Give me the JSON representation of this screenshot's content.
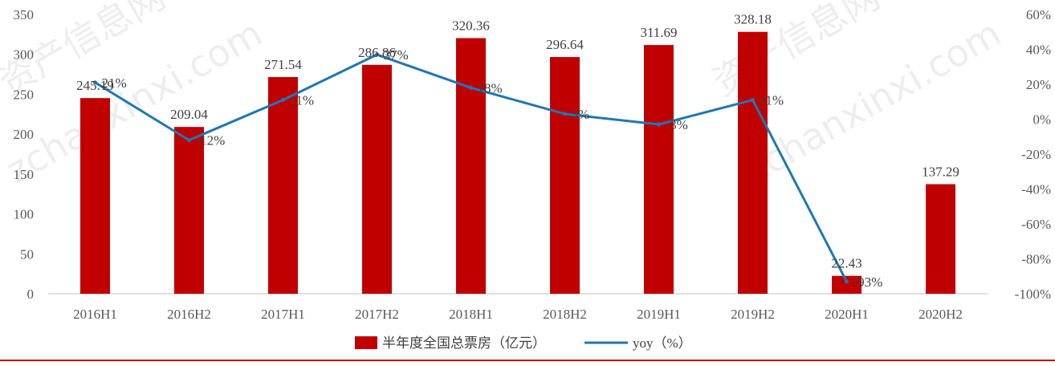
{
  "chart_data": {
    "type": "bar",
    "categories": [
      "2016H1",
      "2016H2",
      "2017H1",
      "2017H2",
      "2018H1",
      "2018H2",
      "2019H1",
      "2019H2",
      "2020H1",
      "2020H2"
    ],
    "series": [
      {
        "name": "半年度全国总票房（亿元）",
        "kind": "bar",
        "axis": "left",
        "color": "#C00000",
        "values": [
          245.19,
          209.04,
          271.54,
          286.86,
          320.36,
          296.64,
          311.69,
          328.18,
          22.43,
          137.29
        ],
        "labels": [
          "245.19",
          "209.04",
          "271.54",
          "286.86",
          "320.36",
          "296.64",
          "311.69",
          "328.18",
          "22.43",
          "137.29"
        ]
      },
      {
        "name": "yoy（%）",
        "kind": "line",
        "axis": "right",
        "color": "#1F77B4",
        "values": [
          21,
          -12,
          11,
          37,
          18,
          3,
          -3,
          11,
          -93,
          null
        ],
        "labels": [
          "21%",
          "-12%",
          "11%",
          "37%",
          "18%",
          "3%",
          "-3%",
          "11%",
          "-93%",
          ""
        ]
      }
    ],
    "ylim_left": [
      0,
      350
    ],
    "yticks_left": [
      "0",
      "50",
      "100",
      "150",
      "200",
      "250",
      "300",
      "350"
    ],
    "ylim_right": [
      -100,
      60
    ],
    "yticks_right": [
      "-100%",
      "-80%",
      "-60%",
      "-40%",
      "-20%",
      "0%",
      "20%",
      "40%",
      "60%"
    ],
    "grid": false,
    "legend_position": "bottom",
    "watermark_text": [
      "资产信息网 千际",
      "zchanxinxi.com",
      "资产信息网",
      "zchanxinxi.com"
    ]
  }
}
